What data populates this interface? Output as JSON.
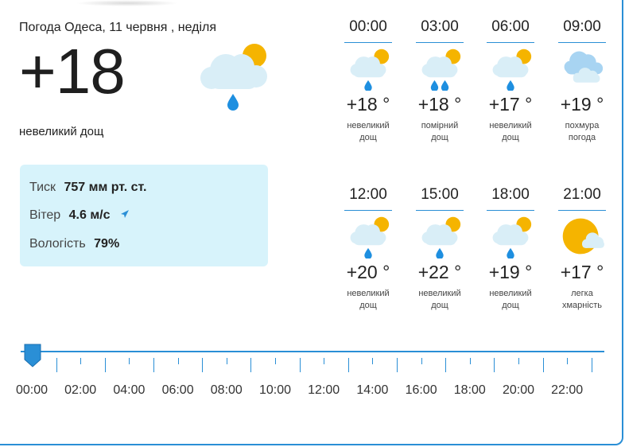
{
  "header": {
    "title": "Погода Одеса, 11 червня , неділя",
    "temperature": "+18",
    "description": "невеликий дощ",
    "icon": "cloud-sun-rain-icon"
  },
  "details": {
    "pressure_label": "Тиск",
    "pressure_value": "757 мм рт. ст.",
    "wind_label": "Вітер",
    "wind_value": "4.6 м/с",
    "humidity_label": "Вологість",
    "humidity_value": "79%"
  },
  "hours": [
    {
      "time": "00:00",
      "temp": "+18 °",
      "desc1": "невеликий",
      "desc2": "дощ",
      "icon": "cloud-sun-rain-icon"
    },
    {
      "time": "03:00",
      "temp": "+18 °",
      "desc1": "помірний",
      "desc2": "дощ",
      "icon": "cloud-sun-heavy-rain-icon"
    },
    {
      "time": "06:00",
      "temp": "+17 °",
      "desc1": "невеликий",
      "desc2": "дощ",
      "icon": "cloud-sun-rain-icon"
    },
    {
      "time": "09:00",
      "temp": "+19 °",
      "desc1": "похмура",
      "desc2": "погода",
      "icon": "overcast-icon"
    },
    {
      "time": "12:00",
      "temp": "+20 °",
      "desc1": "невеликий",
      "desc2": "дощ",
      "icon": "cloud-sun-rain-icon"
    },
    {
      "time": "15:00",
      "temp": "+22 °",
      "desc1": "невеликий",
      "desc2": "дощ",
      "icon": "cloud-sun-rain-icon"
    },
    {
      "time": "18:00",
      "temp": "+19 °",
      "desc1": "невеликий",
      "desc2": "дощ",
      "icon": "cloud-sun-rain-icon"
    },
    {
      "time": "21:00",
      "temp": "+17 °",
      "desc1": "легка",
      "desc2": "хмарність",
      "icon": "sun-small-cloud-icon"
    }
  ],
  "timeline": {
    "labels": [
      "00:00",
      "02:00",
      "04:00",
      "06:00",
      "08:00",
      "10:00",
      "12:00",
      "14:00",
      "16:00",
      "18:00",
      "20:00",
      "22:00"
    ],
    "selected": "00:00"
  },
  "colors": {
    "accent": "#2a8fd6",
    "panel": "#d7f3fb",
    "sun": "#f5b400",
    "cloud": "#d9eef7",
    "rain": "#1e8fe0"
  }
}
